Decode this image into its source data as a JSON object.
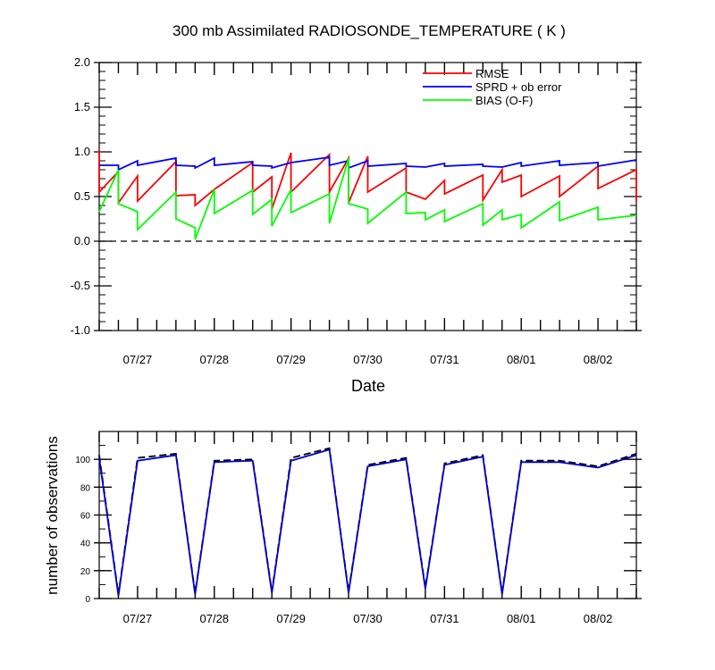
{
  "chart_data": [
    {
      "type": "line",
      "title": "300 mb Assimilated RADIOSONDE_TEMPERATURE ( K )",
      "xlabel": "Date",
      "ylabel": "",
      "ylim": [
        -1.0,
        2.0
      ],
      "y_ticks": [
        "-1.0",
        "-0.5",
        "0.0",
        "0.5",
        "1.0",
        "1.5",
        "2.0"
      ],
      "x_range_days": [
        0,
        7.0
      ],
      "x_tick_labels": [
        "07/27",
        "07/28",
        "07/29",
        "07/30",
        "07/31",
        "08/01",
        "08/02"
      ],
      "x_tick_positions": [
        0.5,
        1.5,
        2.5,
        3.5,
        4.5,
        5.5,
        6.5
      ],
      "reference_line": {
        "y": 0.0,
        "style": "dashed"
      },
      "legend": [
        "RMSE",
        "SPRD + ob error",
        "BIAS (O-F)"
      ],
      "legend_placement": "top-right",
      "series": [
        {
          "name": "RMSE",
          "color": "#ff0000",
          "points": [
            [
              0,
              1.02
            ],
            [
              0,
              0.55
            ],
            [
              0.25,
              0.78
            ],
            [
              0.25,
              0.43
            ],
            [
              0.5,
              0.73
            ],
            [
              0.5,
              0.45
            ],
            [
              1.0,
              0.89
            ],
            [
              1.0,
              0.51
            ],
            [
              1.25,
              0.52
            ],
            [
              1.25,
              0.4
            ],
            [
              1.5,
              0.58
            ],
            [
              2.0,
              0.88
            ],
            [
              2.0,
              0.55
            ],
            [
              2.25,
              0.72
            ],
            [
              2.25,
              0.36
            ],
            [
              2.5,
              0.99
            ],
            [
              2.5,
              0.55
            ],
            [
              3.0,
              0.97
            ],
            [
              3.0,
              0.55
            ],
            [
              3.25,
              0.93
            ],
            [
              3.25,
              0.43
            ],
            [
              3.5,
              0.95
            ],
            [
              3.5,
              0.55
            ],
            [
              4.0,
              0.82
            ],
            [
              4.0,
              0.55
            ],
            [
              4.25,
              0.47
            ],
            [
              4.5,
              0.68
            ],
            [
              4.5,
              0.53
            ],
            [
              5.0,
              0.74
            ],
            [
              5.0,
              0.46
            ],
            [
              5.25,
              0.8
            ],
            [
              5.25,
              0.66
            ],
            [
              5.5,
              0.74
            ],
            [
              5.5,
              0.5
            ],
            [
              6.0,
              0.73
            ],
            [
              6.0,
              0.5
            ],
            [
              6.5,
              0.84
            ],
            [
              6.5,
              0.59
            ],
            [
              7.0,
              0.8
            ],
            [
              7.0,
              0.45
            ]
          ]
        },
        {
          "name": "SPRD + ob error",
          "color": "#0000ff",
          "points": [
            [
              0,
              0.85
            ],
            [
              0.25,
              0.85
            ],
            [
              0.25,
              0.8
            ],
            [
              0.5,
              0.9
            ],
            [
              0.5,
              0.85
            ],
            [
              1.0,
              0.93
            ],
            [
              1.0,
              0.85
            ],
            [
              1.25,
              0.84
            ],
            [
              1.25,
              0.82
            ],
            [
              1.5,
              0.93
            ],
            [
              1.5,
              0.85
            ],
            [
              2.0,
              0.89
            ],
            [
              2.0,
              0.85
            ],
            [
              2.25,
              0.84
            ],
            [
              2.25,
              0.82
            ],
            [
              2.5,
              0.88
            ],
            [
              3.0,
              0.94
            ],
            [
              3.0,
              0.85
            ],
            [
              3.25,
              0.9
            ],
            [
              3.25,
              0.82
            ],
            [
              3.5,
              0.9
            ],
            [
              3.5,
              0.84
            ],
            [
              4.0,
              0.87
            ],
            [
              4.0,
              0.84
            ],
            [
              4.25,
              0.83
            ],
            [
              4.5,
              0.87
            ],
            [
              4.5,
              0.84
            ],
            [
              5.0,
              0.86
            ],
            [
              5.0,
              0.84
            ],
            [
              5.25,
              0.83
            ],
            [
              5.5,
              0.88
            ],
            [
              5.5,
              0.84
            ],
            [
              6.0,
              0.9
            ],
            [
              6.0,
              0.85
            ],
            [
              6.5,
              0.88
            ],
            [
              6.5,
              0.84
            ],
            [
              7.0,
              0.91
            ]
          ]
        },
        {
          "name": "BIAS (O-F)",
          "color": "#00ff00",
          "points": [
            [
              0,
              0.33
            ],
            [
              0.25,
              0.8
            ],
            [
              0.25,
              0.42
            ],
            [
              0.5,
              0.33
            ],
            [
              0.5,
              0.13
            ],
            [
              1.0,
              0.55
            ],
            [
              1.0,
              0.25
            ],
            [
              1.25,
              0.15
            ],
            [
              1.25,
              0.02
            ],
            [
              1.5,
              0.58
            ],
            [
              1.5,
              0.31
            ],
            [
              2.0,
              0.57
            ],
            [
              2.0,
              0.3
            ],
            [
              2.25,
              0.47
            ],
            [
              2.25,
              0.17
            ],
            [
              2.5,
              0.58
            ],
            [
              2.5,
              0.32
            ],
            [
              3.0,
              0.53
            ],
            [
              3.0,
              0.2
            ],
            [
              3.25,
              0.93
            ],
            [
              3.25,
              0.42
            ],
            [
              3.5,
              0.36
            ],
            [
              3.5,
              0.2
            ],
            [
              4.0,
              0.55
            ],
            [
              4.0,
              0.31
            ],
            [
              4.25,
              0.32
            ],
            [
              4.25,
              0.24
            ],
            [
              4.5,
              0.35
            ],
            [
              4.5,
              0.22
            ],
            [
              5.0,
              0.42
            ],
            [
              5.0,
              0.18
            ],
            [
              5.25,
              0.35
            ],
            [
              5.25,
              0.24
            ],
            [
              5.5,
              0.3
            ],
            [
              5.5,
              0.15
            ],
            [
              6.0,
              0.44
            ],
            [
              6.0,
              0.23
            ],
            [
              6.5,
              0.38
            ],
            [
              6.5,
              0.24
            ],
            [
              7.0,
              0.29
            ]
          ]
        }
      ]
    },
    {
      "type": "line",
      "title": "",
      "xlabel": "",
      "ylabel": "number of observations",
      "ylim": [
        0,
        120
      ],
      "y_ticks": [
        "0",
        "20",
        "40",
        "60",
        "80",
        "100"
      ],
      "x_range_days": [
        0,
        7.0
      ],
      "x_tick_labels": [
        "07/27",
        "07/28",
        "07/29",
        "07/30",
        "07/31",
        "08/01",
        "08/02"
      ],
      "x_tick_positions": [
        0.5,
        1.5,
        2.5,
        3.5,
        4.5,
        5.5,
        6.5
      ],
      "series": [
        {
          "name": "observations (dashed)",
          "color": "#000000",
          "dash": true,
          "points": [
            [
              0,
              103
            ],
            [
              0.25,
              3
            ],
            [
              0.5,
              101
            ],
            [
              1.0,
              104
            ],
            [
              1.25,
              4
            ],
            [
              1.5,
              99
            ],
            [
              2.0,
              100
            ],
            [
              2.25,
              5
            ],
            [
              2.5,
              101
            ],
            [
              3.0,
              108
            ],
            [
              3.25,
              5
            ],
            [
              3.5,
              96
            ],
            [
              4.0,
              101
            ],
            [
              4.25,
              8
            ],
            [
              4.5,
              97
            ],
            [
              5.0,
              103
            ],
            [
              5.25,
              4
            ],
            [
              5.5,
              99
            ],
            [
              6.0,
              99
            ],
            [
              6.5,
              95
            ],
            [
              7.0,
              104
            ]
          ]
        },
        {
          "name": "observations (solid)",
          "color": "#0000cc",
          "dash": false,
          "points": [
            [
              0,
              101
            ],
            [
              0.25,
              2
            ],
            [
              0.5,
              99
            ],
            [
              1.0,
              103
            ],
            [
              1.25,
              3
            ],
            [
              1.5,
              98
            ],
            [
              2.0,
              99
            ],
            [
              2.25,
              4
            ],
            [
              2.5,
              99
            ],
            [
              3.0,
              107
            ],
            [
              3.25,
              4
            ],
            [
              3.5,
              95
            ],
            [
              4.0,
              100
            ],
            [
              4.25,
              7
            ],
            [
              4.5,
              96
            ],
            [
              5.0,
              102
            ],
            [
              5.25,
              3
            ],
            [
              5.5,
              98
            ],
            [
              6.0,
              98
            ],
            [
              6.5,
              94
            ],
            [
              7.0,
              103
            ]
          ]
        }
      ]
    }
  ]
}
